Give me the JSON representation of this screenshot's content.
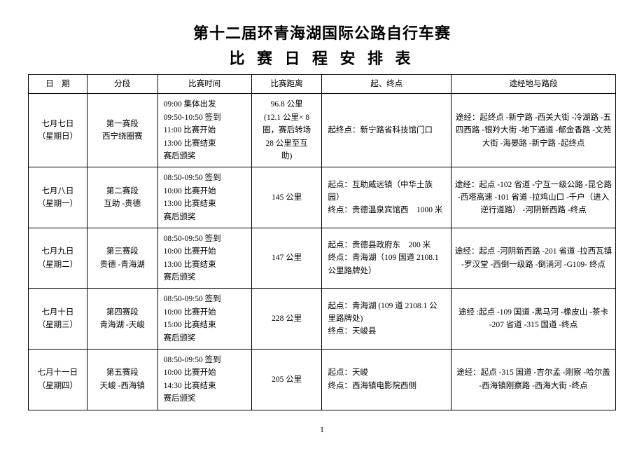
{
  "title": "第十二届环青海湖国际公路自行车赛",
  "subtitle": "比 赛 日 程 安 排 表",
  "headers": {
    "date": "日　期",
    "stage": "分段",
    "time": "比赛时间",
    "distance": "比赛距离",
    "startend": "起、终点",
    "route": "途经地与路段"
  },
  "rows": [
    {
      "date": "七月七日\n（星期日）",
      "stage": "第一赛段\n西宁绕圈赛",
      "time": "09:00  集体出发\n09:50-10:50  签到\n11:00  比赛开始\n13:00  比赛结束\n赛后颁奖",
      "distance": "96.8 公里\n(12.1 公里× 8\n圈，赛后转场\n28 公里至互\n助)",
      "startend": "起终点：新宁路省科技馆门口",
      "route": "途经：起终点 -新宁路 -西关大街 -冷湖路 -五四西路 -银羚大街 -地下通道 -郁金香路 -文苑大街 -海晏路 -新宁路 -起终点"
    },
    {
      "date": "七月八日\n（星期一）",
      "stage": "第二赛段\n互助 -贵德",
      "time": "08:50-09:50  签到\n10:00  比赛开始\n13:00  比赛结束\n赛后颁奖",
      "distance": "145 公里",
      "startend": "起点：互助威远镇（中华土族园）\n终点：贵德温泉宾馆西　1000 米",
      "route": "途经：起点 -102 省道 -宁互一级公路 -昆仑路 -西塔高速 -101 省道 -拉鸡山口 -千户（进入逆行道路） -河阴新西路 -终点"
    },
    {
      "date": "七月九日\n（星期二）",
      "stage": "第三赛段\n贵德 -青海湖",
      "time": "08:50-09:50  签到\n10:00  比赛开始\n13:00  比赛结束\n赛后颁奖",
      "distance": "147 公里",
      "startend": "起点：贵德县政府东　200 米\n终点：青海湖（109 国道 2108.1\n公里路牌处）",
      "route": "途经：起点 -河阴新西路 -201 省道 -拉西瓦镇 -罗汉堂 -西倒一级路 -倒淌河 -G109- 终点"
    },
    {
      "date": "七月十日\n（星期三）",
      "stage": "第四赛段\n青海湖 -天峻",
      "time": "08:50-09:50  签到\n10:00  比赛开始\n15:00  比赛结束\n赛后颁奖",
      "distance": "228 公里",
      "startend": "起点：青海湖 (109 道 2108.1 公\n里路牌处)\n终点：天峻县",
      "route": "途经 :起点 -109 国道 -黑马河 -橡皮山 -茶卡 -207 省道 -315 国道 -终点"
    },
    {
      "date": "七月十一日\n（星期四）",
      "stage": "第五赛段\n天峻 -西海镇",
      "time": "08:50-09:50  签到\n10:00  比赛开始\n14:30  比赛结束\n赛后颁奖",
      "distance": "205 公里",
      "startend": "起点：天峻\n终点：西海镇电影院西侧",
      "route": "途经：起点 -315 国道 -吉尔孟 -刚察 -哈尔盖 -西海镇刚察路 -西海大街 -终点"
    }
  ],
  "page_number": "1"
}
